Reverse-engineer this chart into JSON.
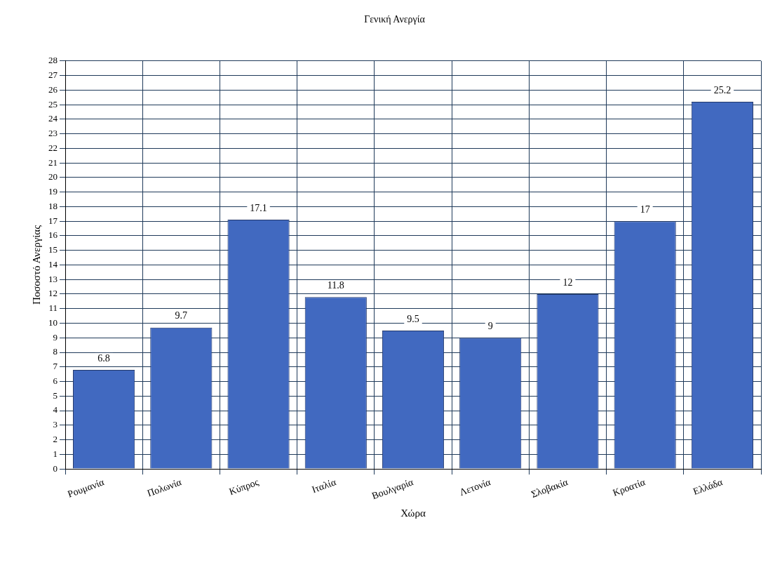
{
  "chart_data": {
    "type": "bar",
    "title": "Γενική Ανεργία",
    "xlabel": "Χώρα",
    "ylabel": "Ποσοστό Ανεργίας",
    "categories": [
      "Ρουμανία",
      "Πολωνία",
      "Κύπρος",
      "Ιταλία",
      "Βουλγαρία",
      "Λετονία",
      "Σλοβακία",
      "Κροατία",
      "Ελλάδα"
    ],
    "values": [
      6.8,
      9.7,
      17.1,
      11.8,
      9.5,
      9,
      12,
      17,
      25.2
    ],
    "color": "#4169c0",
    "ylim": [
      0,
      28
    ],
    "yticks": [
      0,
      1,
      2,
      3,
      4,
      5,
      6,
      7,
      8,
      9,
      10,
      11,
      12,
      13,
      14,
      15,
      16,
      17,
      18,
      19,
      20,
      21,
      22,
      23,
      24,
      25,
      26,
      27,
      28
    ],
    "grid": true,
    "data_labels": true
  }
}
